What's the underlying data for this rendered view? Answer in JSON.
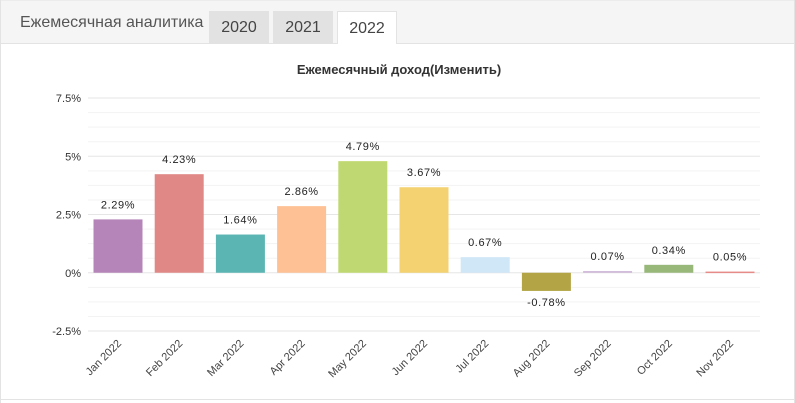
{
  "tabs": {
    "title": "Ежемесячная аналитика",
    "years": [
      "2020",
      "2021",
      "2022"
    ],
    "active_year": "2022"
  },
  "chart_data": {
    "type": "bar",
    "title": "Ежемесячный доход(Изменить)",
    "categories": [
      "Jan 2022",
      "Feb 2022",
      "Mar 2022",
      "Apr 2022",
      "May 2022",
      "Jun 2022",
      "Jul 2022",
      "Aug 2022",
      "Sep 2022",
      "Oct 2022",
      "Nov 2022"
    ],
    "values": [
      2.29,
      4.23,
      1.64,
      2.86,
      4.79,
      3.67,
      0.67,
      -0.78,
      0.07,
      0.34,
      0.05
    ],
    "data_labels": [
      "2.29%",
      "4.23%",
      "1.64%",
      "2.86%",
      "4.79%",
      "3.67%",
      "0.67%",
      "-0.78%",
      "0.07%",
      "0.34%",
      "0.05%"
    ],
    "colors": [
      "#b585b9",
      "#e08886",
      "#5ab5b3",
      "#fec195",
      "#c0d871",
      "#f4d271",
      "#d0e7f7",
      "#b3a545",
      "#cdb5d7",
      "#98b87a",
      "#e78b89"
    ],
    "yticks": [
      "7.5%",
      "5%",
      "2.5%",
      "0%",
      "-2.5%"
    ],
    "ytick_values": [
      7.5,
      5,
      2.5,
      0,
      -2.5
    ],
    "ylim": [
      -2.5,
      7.5
    ],
    "grid": true,
    "legend": "none"
  }
}
